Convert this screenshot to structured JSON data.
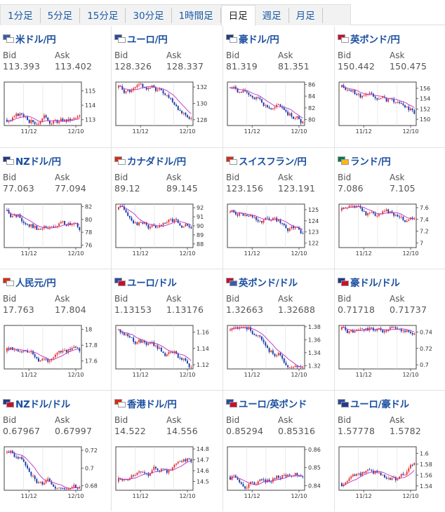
{
  "tabs": [
    {
      "label": "1分足"
    },
    {
      "label": "5分足"
    },
    {
      "label": "15分足"
    },
    {
      "label": "30分足"
    },
    {
      "label": "1時間足"
    },
    {
      "label": "日足",
      "active": true
    },
    {
      "label": "週足"
    },
    {
      "label": "月足"
    }
  ],
  "labels": {
    "bid": "Bid",
    "ask": "Ask"
  },
  "pairs": [
    {
      "name": "米ドル/円",
      "bid": "113.393",
      "ask": "113.402",
      "flag1": "#3b5bab",
      "flag2": "#ffffff",
      "icon": "usd-jpy-flag-icon",
      "chart": {
        "yticks": [
          "115",
          "114",
          "113"
        ],
        "yvals": [
          115,
          114,
          113
        ],
        "ymin": 112.6,
        "ymax": 115.6,
        "start": 113.0,
        "seed": 3,
        "trend": 0.3
      }
    },
    {
      "name": "ユーロ/円",
      "bid": "128.326",
      "ask": "128.337",
      "flag1": "#2a4ba0",
      "flag2": "#ffffff",
      "icon": "eur-jpy-flag-icon",
      "chart": {
        "yticks": [
          "132",
          "130",
          "128"
        ],
        "yvals": [
          132,
          130,
          128
        ],
        "ymin": 127.3,
        "ymax": 132.6,
        "start": 131.9,
        "seed": 5,
        "trend": -3.8
      }
    },
    {
      "name": "豪ドル/円",
      "bid": "81.319",
      "ask": "81.351",
      "flag1": "#1f3b8a",
      "flag2": "#ffffff",
      "icon": "aud-jpy-flag-icon",
      "chart": {
        "yticks": [
          "86",
          "84",
          "82",
          "80"
        ],
        "yvals": [
          86,
          84,
          82,
          80
        ],
        "ymin": 79.0,
        "ymax": 86.4,
        "start": 85.5,
        "seed": 7,
        "trend": -4.5
      }
    },
    {
      "name": "英ポンド/円",
      "bid": "150.442",
      "ask": "150.475",
      "flag1": "#c8102e",
      "flag2": "#ffffff",
      "icon": "gbp-jpy-flag-icon",
      "chart": {
        "yticks": [
          "156",
          "154",
          "152",
          "150"
        ],
        "yvals": [
          156,
          154,
          152,
          150
        ],
        "ymin": 148.8,
        "ymax": 157.2,
        "start": 156.2,
        "seed": 11,
        "trend": -5.8
      }
    },
    {
      "name": "NZドル/円",
      "bid": "77.063",
      "ask": "77.094",
      "flag1": "#1f3b8a",
      "flag2": "#ffffff",
      "icon": "nzd-jpy-flag-icon",
      "chart": {
        "yticks": [
          "82",
          "80",
          "78",
          "76"
        ],
        "yvals": [
          82,
          80,
          78,
          76
        ],
        "ymin": 75.6,
        "ymax": 82.4,
        "start": 81.5,
        "seed": 13,
        "trend": -4.5
      }
    },
    {
      "name": "カナダドル/円",
      "bid": "89.12",
      "ask": "89.145",
      "flag1": "#d52b1e",
      "flag2": "#ffffff",
      "icon": "cad-jpy-flag-icon",
      "chart": {
        "yticks": [
          "92",
          "91",
          "90",
          "89",
          "88"
        ],
        "yvals": [
          92,
          91,
          90,
          89,
          88
        ],
        "ymin": 87.6,
        "ymax": 92.4,
        "start": 91.8,
        "seed": 17,
        "trend": -2.6
      }
    },
    {
      "name": "スイスフラン/円",
      "bid": "123.156",
      "ask": "123.191",
      "flag1": "#d52b1e",
      "flag2": "#ffffff",
      "icon": "chf-jpy-flag-icon",
      "chart": {
        "yticks": [
          "125",
          "124",
          "123",
          "122"
        ],
        "yvals": [
          125,
          124,
          123,
          122
        ],
        "ymin": 121.6,
        "ymax": 125.5,
        "start": 124.8,
        "seed": 19,
        "trend": -1.7
      }
    },
    {
      "name": "ランド/円",
      "bid": "7.086",
      "ask": "7.105",
      "flag1": "#007a4d",
      "flag2": "#ffb612",
      "icon": "zar-jpy-flag-icon",
      "chart": {
        "yticks": [
          "7.6",
          "7.4",
          "7.2",
          "7"
        ],
        "yvals": [
          7.6,
          7.4,
          7.2,
          7.0
        ],
        "ymin": 6.92,
        "ymax": 7.66,
        "start": 7.55,
        "seed": 23,
        "trend": -0.45
      }
    },
    {
      "name": "人民元/円",
      "bid": "17.763",
      "ask": "17.804",
      "flag1": "#de2910",
      "flag2": "#ffffff",
      "icon": "cny-jpy-flag-icon",
      "chart": {
        "yticks": [
          "18",
          "17.8",
          "17.6"
        ],
        "yvals": [
          18.0,
          17.8,
          17.6
        ],
        "ymin": 17.5,
        "ymax": 18.05,
        "start": 17.72,
        "seed": 29,
        "trend": 0.05
      }
    },
    {
      "name": "ユーロ/ドル",
      "bid": "1.13153",
      "ask": "1.13176",
      "flag1": "#2a4ba0",
      "flag2": "#c8102e",
      "icon": "eur-usd-flag-icon",
      "chart": {
        "yticks": [
          "1.16",
          "1.14",
          "1.12"
        ],
        "yvals": [
          1.16,
          1.14,
          1.12
        ],
        "ymin": 1.115,
        "ymax": 1.168,
        "start": 1.163,
        "seed": 31,
        "trend": -0.035
      }
    },
    {
      "name": "英ポンド/ドル",
      "bid": "1.32663",
      "ask": "1.32688",
      "flag1": "#c8102e",
      "flag2": "#3b5bab",
      "icon": "gbp-usd-flag-icon",
      "chart": {
        "yticks": [
          "1.38",
          "1.36",
          "1.34",
          "1.32"
        ],
        "yvals": [
          1.38,
          1.36,
          1.34,
          1.32
        ],
        "ymin": 1.315,
        "ymax": 1.382,
        "start": 1.375,
        "seed": 37,
        "trend": -0.05
      }
    },
    {
      "name": "豪ドル/ドル",
      "bid": "0.71718",
      "ask": "0.71737",
      "flag1": "#1f3b8a",
      "flag2": "#c8102e",
      "icon": "aud-usd-flag-icon",
      "chart": {
        "yticks": [
          "0.74",
          "0.72",
          "0.7"
        ],
        "yvals": [
          0.74,
          0.72,
          0.7
        ],
        "ymin": 0.695,
        "ymax": 0.748,
        "start": 0.743,
        "seed": 41,
        "trend": -0.028
      }
    },
    {
      "name": "NZドル/ドル",
      "bid": "0.67967",
      "ask": "0.67997",
      "flag1": "#1f3b8a",
      "flag2": "#c8102e",
      "icon": "nzd-usd-flag-icon",
      "chart": {
        "yticks": [
          "0.72",
          "0.7",
          "0.68"
        ],
        "yvals": [
          0.72,
          0.7,
          0.68
        ],
        "ymin": 0.675,
        "ymax": 0.724,
        "start": 0.718,
        "seed": 43,
        "trend": -0.04
      }
    },
    {
      "name": "香港ドル/円",
      "bid": "14.522",
      "ask": "14.556",
      "flag1": "#de2910",
      "flag2": "#ffffff",
      "icon": "hkd-jpy-flag-icon",
      "chart": {
        "yticks": [
          "14.8",
          "14.7",
          "14.6",
          "14.5"
        ],
        "yvals": [
          14.8,
          14.7,
          14.6,
          14.5
        ],
        "ymin": 14.42,
        "ymax": 14.82,
        "start": 14.5,
        "seed": 47,
        "trend": 0.02
      }
    },
    {
      "name": "ユーロ/英ポンド",
      "bid": "0.85294",
      "ask": "0.85316",
      "flag1": "#2a4ba0",
      "flag2": "#c8102e",
      "icon": "eur-gbp-flag-icon",
      "chart": {
        "yticks": [
          "0.86",
          "0.85",
          "0.84"
        ],
        "yvals": [
          0.86,
          0.85,
          0.84
        ],
        "ymin": 0.8375,
        "ymax": 0.8615,
        "start": 0.845,
        "seed": 53,
        "trend": 0.008
      }
    },
    {
      "name": "ユーロ/豪ドル",
      "bid": "1.57778",
      "ask": "1.5782",
      "flag1": "#2a4ba0",
      "flag2": "#1f3b8a",
      "icon": "eur-aud-flag-icon",
      "chart": {
        "yticks": [
          "1.6",
          "1.58",
          "1.56",
          "1.54"
        ],
        "yvals": [
          1.6,
          1.58,
          1.56,
          1.54
        ],
        "ymin": 1.532,
        "ymax": 1.612,
        "start": 1.545,
        "seed": 59,
        "trend": 0.035
      }
    }
  ],
  "xticks": [
    "11/12",
    "12/10"
  ],
  "colors": {
    "up": "#e5312f",
    "down": "#1537a8",
    "ma": "#c030c0",
    "title": "#1a4fa0"
  }
}
